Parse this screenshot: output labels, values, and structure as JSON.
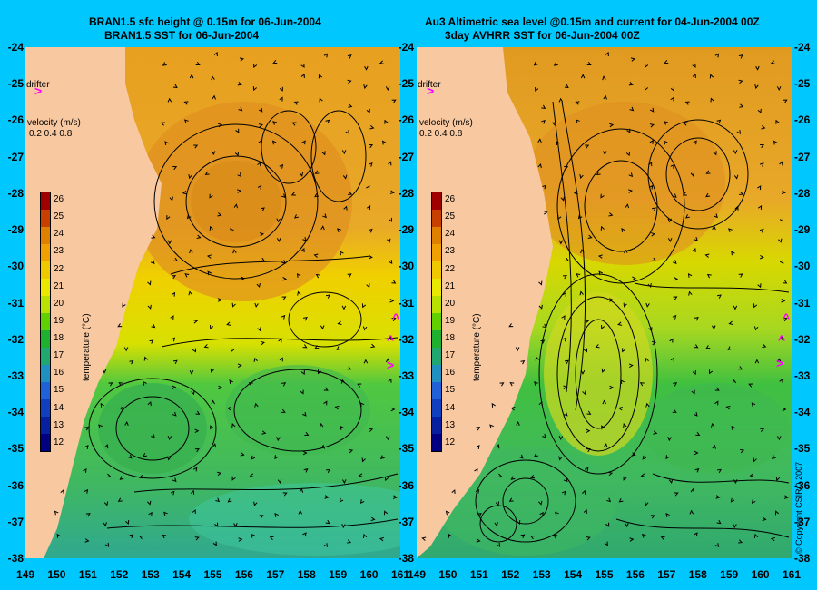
{
  "left_panel": {
    "title_line1": "BRAN1.5 sfc height @ 0.15m for 06-Jun-2004",
    "title_line2": "BRAN1.5 SST for 06-Jun-2004",
    "drifter_label": "drifter",
    "velocity_label": "velocity (m/s)",
    "velocity_scale": "0.2 0.4 0.8"
  },
  "right_panel": {
    "title_line1": "Au3 Altimetric sea level  @0.15m and current for 04-Jun-2004 00Z",
    "title_line2": "3day AVHRR SST for 06-Jun-2004 00Z",
    "drifter_label": "drifter",
    "velocity_label": "velocity (m/s)",
    "velocity_scale": "0.2 0.4 0.8",
    "copyright": "© Copyright CSIRO 2007"
  },
  "colorbar": {
    "title": "temperature (°C)",
    "ticks": [
      "26",
      "25",
      "24",
      "23",
      "22",
      "21",
      "20",
      "19",
      "18",
      "17",
      "16",
      "15",
      "14",
      "13",
      "12"
    ],
    "colors": [
      "#a00000",
      "#c84000",
      "#e08000",
      "#f0a000",
      "#f0c800",
      "#e8e800",
      "#b8e000",
      "#60d000",
      "#20b030",
      "#20a870",
      "#2090c0",
      "#2060d8",
      "#1040c0",
      "#0820a0",
      "#000080"
    ]
  },
  "latitudes": [
    "-24",
    "-25",
    "-26",
    "-27",
    "-28",
    "-29",
    "-30",
    "-31",
    "-32",
    "-33",
    "-34",
    "-35",
    "-36",
    "-37",
    "-38"
  ],
  "longitudes": [
    "149",
    "150",
    "151",
    "152",
    "153",
    "154",
    "155",
    "156",
    "157",
    "158",
    "159",
    "160",
    "161"
  ],
  "colors": {
    "background": "#00c8ff",
    "land": "#f8c8a0",
    "warm": "#e09a20",
    "mid": "#e8e000",
    "cool": "#40c040",
    "cold": "#30b080",
    "drifter": "#ff00ff"
  }
}
